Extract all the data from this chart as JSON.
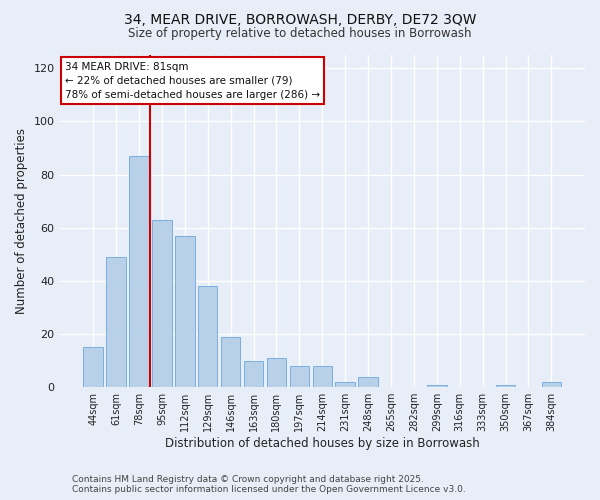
{
  "title_line1": "34, MEAR DRIVE, BORROWASH, DERBY, DE72 3QW",
  "title_line2": "Size of property relative to detached houses in Borrowash",
  "xlabel": "Distribution of detached houses by size in Borrowash",
  "ylabel": "Number of detached properties",
  "bar_labels": [
    "44sqm",
    "61sqm",
    "78sqm",
    "95sqm",
    "112sqm",
    "129sqm",
    "146sqm",
    "163sqm",
    "180sqm",
    "197sqm",
    "214sqm",
    "231sqm",
    "248sqm",
    "265sqm",
    "282sqm",
    "299sqm",
    "316sqm",
    "333sqm",
    "350sqm",
    "367sqm",
    "384sqm"
  ],
  "bar_values": [
    15,
    49,
    87,
    63,
    57,
    38,
    19,
    10,
    11,
    8,
    8,
    2,
    4,
    0,
    0,
    1,
    0,
    0,
    1,
    0,
    2
  ],
  "bar_color": "#b8d0e8",
  "bar_edgecolor": "#7aafe0",
  "ylim": [
    0,
    125
  ],
  "yticks": [
    0,
    20,
    40,
    60,
    80,
    100,
    120
  ],
  "vline_index": 2,
  "vline_color": "#cc0000",
  "annotation_title": "34 MEAR DRIVE: 81sqm",
  "annotation_line1": "← 22% of detached houses are smaller (79)",
  "annotation_line2": "78% of semi-detached houses are larger (286) →",
  "annotation_box_color": "#ffffff",
  "annotation_box_edgecolor": "#cc0000",
  "footer_line1": "Contains HM Land Registry data © Crown copyright and database right 2025.",
  "footer_line2": "Contains public sector information licensed under the Open Government Licence v3.0.",
  "background_color": "#e8eef8",
  "grid_color": "#ffffff"
}
